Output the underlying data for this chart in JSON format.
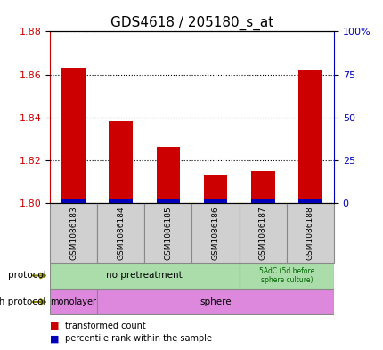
{
  "title": "GDS4618 / 205180_s_at",
  "samples": [
    "GSM1086183",
    "GSM1086184",
    "GSM1086185",
    "GSM1086186",
    "GSM1086187",
    "GSM1086188"
  ],
  "transformed_counts": [
    1.863,
    1.838,
    1.826,
    1.813,
    1.815,
    1.862
  ],
  "percentile_ranks": [
    2,
    2,
    2,
    2,
    2,
    2
  ],
  "ylim_left": [
    1.8,
    1.88
  ],
  "yticks_left": [
    1.8,
    1.82,
    1.84,
    1.86,
    1.88
  ],
  "ylim_right": [
    0,
    100
  ],
  "yticks_right": [
    0,
    25,
    50,
    75,
    100
  ],
  "ytick_labels_right": [
    "0",
    "25",
    "50",
    "75",
    "100%"
  ],
  "bar_color_red": "#cc0000",
  "bar_color_blue": "#0000bb",
  "left_axis_color": "#cc0000",
  "right_axis_color": "#0000bb",
  "legend_items": [
    {
      "color": "#cc0000",
      "label": "transformed count"
    },
    {
      "color": "#0000bb",
      "label": "percentile rank within the sample"
    }
  ],
  "bar_width": 0.5,
  "background_color": "#ffffff",
  "label_fontsize": 8,
  "title_fontsize": 11
}
